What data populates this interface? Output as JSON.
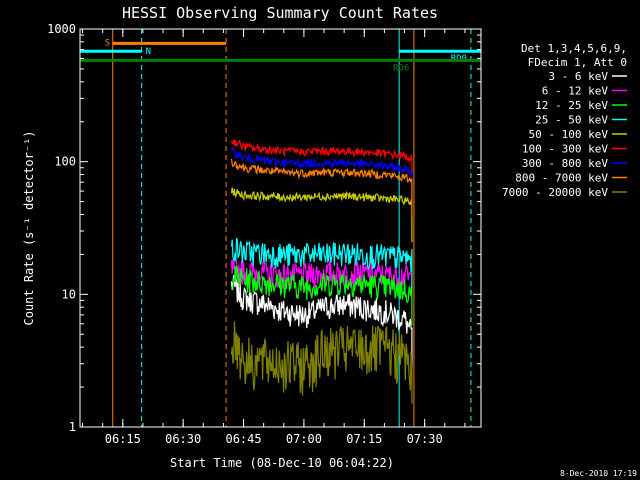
{
  "chart_data": {
    "type": "line",
    "title": "HESSI Observing Summary Count Rates",
    "xlabel": "Start Time (08-Dec-10 06:04:22)",
    "ylabel": "Count Rate (s⁻¹ detector⁻¹)",
    "y_scale": "log",
    "ylim": [
      1,
      1000
    ],
    "xlim": [
      "06:04:22",
      "07:44:00"
    ],
    "x_ticks": [
      "06:15",
      "06:30",
      "06:45",
      "07:00",
      "07:15",
      "07:30"
    ],
    "y_ticks": [
      "1",
      "10",
      "100",
      "1000"
    ],
    "grid": false,
    "legend_position": "right",
    "legend_header": [
      "Det 1,3,4,5,6,9,",
      "FDecim 1, Att 0"
    ],
    "series": [
      {
        "name": "3 - 6 keV",
        "color": "#ffffff",
        "x": [
          "06:42",
          "06:45",
          "06:50",
          "06:55",
          "07:00",
          "07:05",
          "07:10",
          "07:15",
          "07:20",
          "07:25",
          "07:27"
        ],
        "y": [
          12,
          9.5,
          8.5,
          7.5,
          7,
          8,
          8.5,
          8,
          7.5,
          6.5,
          5
        ]
      },
      {
        "name": "6 - 12 keV",
        "color": "#ff00ff",
        "x": [
          "06:42",
          "06:45",
          "06:50",
          "06:55",
          "07:00",
          "07:05",
          "07:10",
          "07:15",
          "07:20",
          "07:25",
          "07:27"
        ],
        "y": [
          15.5,
          15,
          14.5,
          14,
          14,
          14.5,
          14.5,
          14.5,
          14,
          14,
          13
        ]
      },
      {
        "name": "12 - 25 keV",
        "color": "#00ff00",
        "x": [
          "06:42",
          "06:45",
          "06:50",
          "06:55",
          "07:00",
          "07:05",
          "07:10",
          "07:15",
          "07:20",
          "07:25",
          "07:27"
        ],
        "y": [
          14,
          13,
          12.5,
          12,
          11.5,
          12,
          12.5,
          12,
          11.5,
          11,
          10
        ]
      },
      {
        "name": "25 - 50 keV",
        "color": "#00ffff",
        "x": [
          "06:42",
          "06:45",
          "06:50",
          "06:55",
          "07:00",
          "07:05",
          "07:10",
          "07:15",
          "07:20",
          "07:25",
          "07:27"
        ],
        "y": [
          23,
          21,
          20.5,
          20,
          20,
          20,
          20.5,
          20,
          19.5,
          19,
          18
        ]
      },
      {
        "name": "50 - 100 keV",
        "color": "#cccc00",
        "x": [
          "06:42",
          "06:45",
          "06:50",
          "06:55",
          "07:00",
          "07:05",
          "07:10",
          "07:15",
          "07:20",
          "07:25",
          "07:27"
        ],
        "y": [
          60,
          56,
          55,
          54,
          54,
          55,
          55,
          54,
          53,
          51,
          49
        ]
      },
      {
        "name": "100 - 300 keV",
        "color": "#ff0000",
        "x": [
          "06:42",
          "06:45",
          "06:50",
          "06:55",
          "07:00",
          "07:05",
          "07:10",
          "07:15",
          "07:20",
          "07:25",
          "07:27"
        ],
        "y": [
          145,
          130,
          124,
          120,
          119,
          120,
          120,
          118,
          115,
          110,
          105
        ]
      },
      {
        "name": "300 - 800 keV",
        "color": "#0000ff",
        "x": [
          "06:42",
          "06:45",
          "06:50",
          "06:55",
          "07:00",
          "07:05",
          "07:10",
          "07:15",
          "07:20",
          "07:25",
          "07:27"
        ],
        "y": [
          120,
          108,
          102,
          98,
          97,
          98,
          98,
          96,
          93,
          88,
          83
        ]
      },
      {
        "name": "800 - 7000 keV",
        "color": "#ff8000",
        "x": [
          "06:42",
          "06:45",
          "06:50",
          "06:55",
          "07:00",
          "07:05",
          "07:10",
          "07:15",
          "07:20",
          "07:25",
          "07:27"
        ],
        "y": [
          100,
          90,
          86,
          83,
          82,
          83,
          83,
          82,
          80,
          76,
          72
        ]
      },
      {
        "name": "7000 - 20000 keV",
        "color": "#808000",
        "x": [
          "06:42",
          "06:44",
          "06:45",
          "06:50",
          "06:55",
          "07:00",
          "07:05",
          "07:10",
          "07:15",
          "07:20",
          "07:25",
          "07:27"
        ],
        "y": [
          5,
          4,
          3.3,
          3.2,
          3.1,
          3,
          3.8,
          4,
          4,
          4,
          3.5,
          2.5
        ]
      }
    ],
    "annotations": {
      "solid_verticals": [
        {
          "x": "06:04:22",
          "color": "#00ffff"
        },
        {
          "x": "06:12:30",
          "color": "#ff8000"
        },
        {
          "x": "07:23:40",
          "color": "#00ffff"
        },
        {
          "x": "07:27:20",
          "color": "#ff8000"
        }
      ],
      "dashed_verticals": [
        {
          "x": "06:19:40",
          "color": "#00ffff"
        },
        {
          "x": "06:40:40",
          "color": "#ff8000"
        },
        {
          "x": "07:41:30",
          "color": "#00ffff"
        }
      ],
      "bars": [
        {
          "label": "S",
          "color": "#ff8000",
          "x_start": "06:12:30",
          "x_end": "06:40:40",
          "level": 780
        },
        {
          "label": "N",
          "color": "#00ffff",
          "x_start": "06:04:22",
          "x_end": "06:19:40",
          "level": 680
        },
        {
          "label": "RD0",
          "color": "#00ffff",
          "x_start": "07:23:40",
          "x_end": "07:44:00",
          "level": 680
        },
        {
          "label": "RD6",
          "color": "#008000",
          "x_start": "06:04:22",
          "x_end": "07:44:00",
          "level": 580
        }
      ]
    }
  },
  "footer_date": "8-Dec-2010 17:19"
}
